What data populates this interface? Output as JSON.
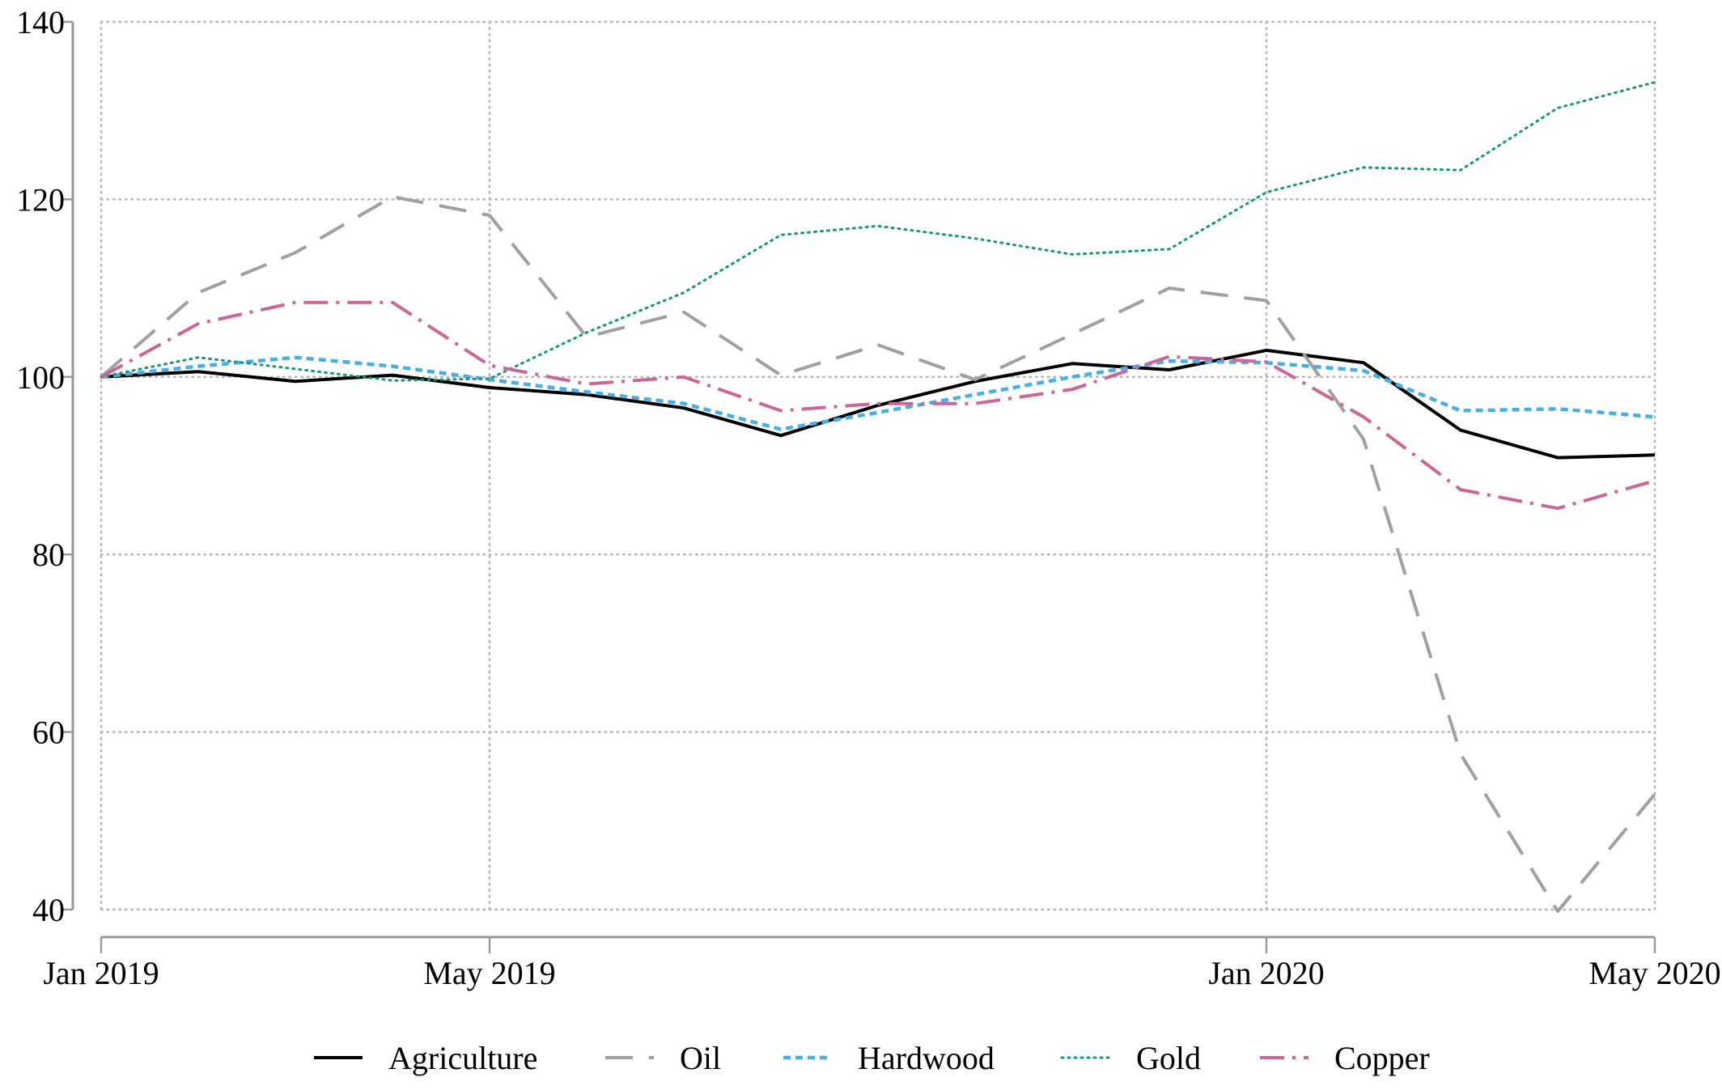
{
  "chart_data": {
    "type": "line",
    "title": "",
    "xlabel": "",
    "ylabel": "",
    "x": [
      "2019-01",
      "2019-02",
      "2019-03",
      "2019-04",
      "2019-05",
      "2019-06",
      "2019-07",
      "2019-08",
      "2019-09",
      "2019-10",
      "2019-11",
      "2019-12",
      "2020-01",
      "2020-02",
      "2020-03",
      "2020-04",
      "2020-05"
    ],
    "xlim": [
      "2019-01",
      "2020-05"
    ],
    "xticks": [
      {
        "x": "2019-01",
        "label": "Jan 2019"
      },
      {
        "x": "2019-05",
        "label": "May 2019"
      },
      {
        "x": "2020-01",
        "label": "Jan 2020"
      },
      {
        "x": "2020-05",
        "label": "May 2020"
      }
    ],
    "ylim": [
      40,
      140
    ],
    "yticks": [
      {
        "y": 40,
        "label": "40"
      },
      {
        "y": 60,
        "label": "60"
      },
      {
        "y": 80,
        "label": "80"
      },
      {
        "y": 100,
        "label": "100"
      },
      {
        "y": 120,
        "label": "120"
      },
      {
        "y": 140,
        "label": "140"
      }
    ],
    "grid": "dotted, at ticks",
    "legend_position": "bottom",
    "series": [
      {
        "name": "Agriculture",
        "color": "#000000",
        "style": "solid",
        "values": [
          100,
          100.6,
          99.5,
          100.2,
          98.8,
          98.0,
          96.5,
          93.4,
          96.8,
          99.5,
          101.5,
          100.8,
          103.0,
          101.6,
          94.0,
          90.9,
          91.2
        ]
      },
      {
        "name": "Oil",
        "color": "#a0a0a0",
        "style": "dashed",
        "values": [
          100,
          109.5,
          114.0,
          120.3,
          118.2,
          104.5,
          107.3,
          100.2,
          103.6,
          99.7,
          104.8,
          110.0,
          108.6,
          93.0,
          57.5,
          39.8,
          53.0
        ]
      },
      {
        "name": "Hardwood",
        "color": "#45b0e6",
        "style": "dotted-dense",
        "values": [
          100,
          101.2,
          102.2,
          101.2,
          99.7,
          98.3,
          97.0,
          94.1,
          96.0,
          98.0,
          100.0,
          101.8,
          101.6,
          100.7,
          96.2,
          96.4,
          95.5
        ]
      },
      {
        "name": "Gold",
        "color": "#119977",
        "style": "dotted",
        "values": [
          100,
          102.2,
          100.9,
          99.6,
          99.8,
          105.0,
          109.5,
          116.0,
          117.0,
          115.6,
          113.8,
          114.4,
          120.8,
          123.6,
          123.3,
          130.3,
          133.2
        ]
      },
      {
        "name": "Copper",
        "color": "#cc6699",
        "style": "dashdot",
        "values": [
          100,
          106.0,
          108.4,
          108.4,
          101.3,
          99.2,
          100.0,
          96.2,
          97.0,
          97.0,
          98.6,
          102.3,
          101.7,
          95.5,
          87.3,
          85.2,
          88.3
        ]
      }
    ]
  }
}
